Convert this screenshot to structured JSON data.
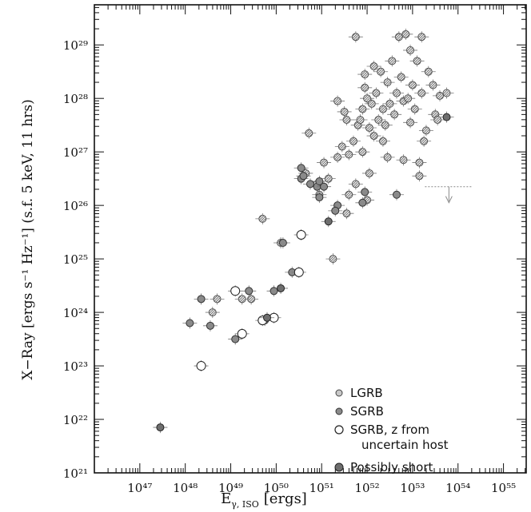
{
  "chart_data": {
    "type": "scatter",
    "xlabel": "E",
    "xlabel_sub": "γ, ISO",
    "xlabel_unit": "[ergs]",
    "ylabel": "X−Ray [ergs s⁻¹ Hz⁻¹] (s.f. 5 keV, 11 hrs)",
    "x_log": true,
    "y_log": true,
    "xlim_exp": [
      46,
      55.5
    ],
    "ylim_exp": [
      21,
      29.75
    ],
    "x_tick_exponents": [
      47,
      48,
      49,
      50,
      51,
      52,
      53,
      54,
      55
    ],
    "y_tick_exponents": [
      21,
      22,
      23,
      24,
      25,
      26,
      27,
      28,
      29
    ],
    "legend": {
      "placement": "bottom-right",
      "entries": [
        "LGRB",
        "SGRB",
        "SGRB, z from",
        "uncertain host",
        "Possibly short"
      ]
    },
    "colors": {
      "LGRB": "#c8c8c8",
      "SGRB": "#8a8a8a",
      "SGRB_uncertain": "#ffffff",
      "possibly_short": "#6e6e6e"
    },
    "series": [
      {
        "name": "LGRB",
        "points": [
          [
            49.7,
            25.75
          ],
          [
            49.45,
            24.25
          ],
          [
            49.25,
            24.25
          ],
          [
            48.7,
            24.25
          ],
          [
            48.6,
            24.0
          ],
          [
            50.1,
            25.3
          ],
          [
            50.65,
            26.6
          ],
          [
            50.72,
            27.35
          ],
          [
            50.95,
            26.2
          ],
          [
            51.05,
            26.8
          ],
          [
            51.15,
            26.5
          ],
          [
            51.25,
            25.0
          ],
          [
            51.35,
            26.9
          ],
          [
            51.45,
            27.1
          ],
          [
            51.5,
            27.75
          ],
          [
            51.6,
            26.95
          ],
          [
            51.7,
            27.2
          ],
          [
            51.75,
            26.4
          ],
          [
            51.8,
            27.5
          ],
          [
            51.9,
            27.8
          ],
          [
            51.95,
            28.2
          ],
          [
            51.75,
            29.15
          ],
          [
            51.85,
            27.6
          ],
          [
            52.0,
            28.0
          ],
          [
            52.0,
            26.1
          ],
          [
            52.05,
            27.45
          ],
          [
            52.1,
            27.9
          ],
          [
            52.15,
            27.3
          ],
          [
            52.2,
            28.1
          ],
          [
            52.25,
            27.6
          ],
          [
            52.3,
            28.5
          ],
          [
            52.35,
            27.8
          ],
          [
            52.4,
            27.5
          ],
          [
            52.45,
            28.3
          ],
          [
            52.5,
            27.9
          ],
          [
            52.55,
            28.7
          ],
          [
            52.6,
            27.7
          ],
          [
            52.65,
            28.1
          ],
          [
            52.7,
            29.15
          ],
          [
            52.75,
            28.4
          ],
          [
            52.8,
            27.95
          ],
          [
            52.85,
            29.2
          ],
          [
            52.9,
            28.0
          ],
          [
            52.95,
            27.55
          ],
          [
            53.0,
            28.25
          ],
          [
            53.05,
            27.8
          ],
          [
            53.1,
            28.7
          ],
          [
            53.15,
            26.8
          ],
          [
            53.2,
            28.1
          ],
          [
            53.3,
            27.4
          ],
          [
            53.35,
            28.5
          ],
          [
            53.2,
            29.15
          ],
          [
            53.5,
            27.7
          ],
          [
            53.6,
            28.05
          ],
          [
            53.75,
            28.1
          ],
          [
            53.55,
            27.6
          ],
          [
            53.15,
            26.55
          ],
          [
            53.25,
            27.2
          ],
          [
            51.55,
            27.6
          ],
          [
            52.15,
            28.6
          ],
          [
            52.95,
            28.9
          ],
          [
            51.35,
            27.95
          ],
          [
            51.6,
            26.2
          ],
          [
            52.45,
            26.9
          ],
          [
            51.9,
            27.0
          ],
          [
            52.05,
            26.6
          ],
          [
            51.55,
            25.85
          ],
          [
            50.9,
            26.4
          ],
          [
            52.35,
            27.2
          ],
          [
            52.8,
            26.85
          ],
          [
            53.45,
            28.25
          ],
          [
            51.95,
            28.45
          ]
        ]
      },
      {
        "name": "SGRB",
        "points": [
          [
            48.1,
            23.8
          ],
          [
            48.35,
            24.25
          ],
          [
            48.55,
            23.75
          ],
          [
            49.1,
            23.5
          ],
          [
            49.4,
            24.4
          ],
          [
            49.75,
            23.85
          ],
          [
            50.15,
            25.3
          ],
          [
            50.35,
            24.75
          ],
          [
            50.55,
            26.5
          ],
          [
            50.9,
            26.35
          ],
          [
            50.55,
            26.7
          ],
          [
            50.95,
            26.15
          ],
          [
            51.05,
            26.35
          ],
          [
            51.35,
            26.0
          ],
          [
            51.95,
            26.25
          ],
          [
            51.9,
            26.05
          ],
          [
            50.95,
            26.45
          ],
          [
            51.3,
            25.9
          ],
          [
            52.65,
            26.2
          ],
          [
            50.6,
            26.55
          ],
          [
            49.95,
            24.4
          ],
          [
            50.75,
            26.4
          ]
        ]
      },
      {
        "name": "SGRB, z from uncertain host",
        "points": [
          [
            48.35,
            23.0
          ],
          [
            49.1,
            24.4
          ],
          [
            49.25,
            23.6
          ],
          [
            49.7,
            23.85
          ],
          [
            49.95,
            23.9
          ],
          [
            50.5,
            24.75
          ],
          [
            50.55,
            25.45
          ]
        ]
      },
      {
        "name": "Possibly short",
        "points": [
          [
            47.45,
            21.85
          ],
          [
            49.8,
            23.9
          ],
          [
            50.1,
            24.45
          ],
          [
            51.15,
            25.7
          ],
          [
            53.75,
            27.65
          ]
        ]
      }
    ],
    "upper_limits": [
      [
        53.8,
        26.35
      ]
    ]
  }
}
